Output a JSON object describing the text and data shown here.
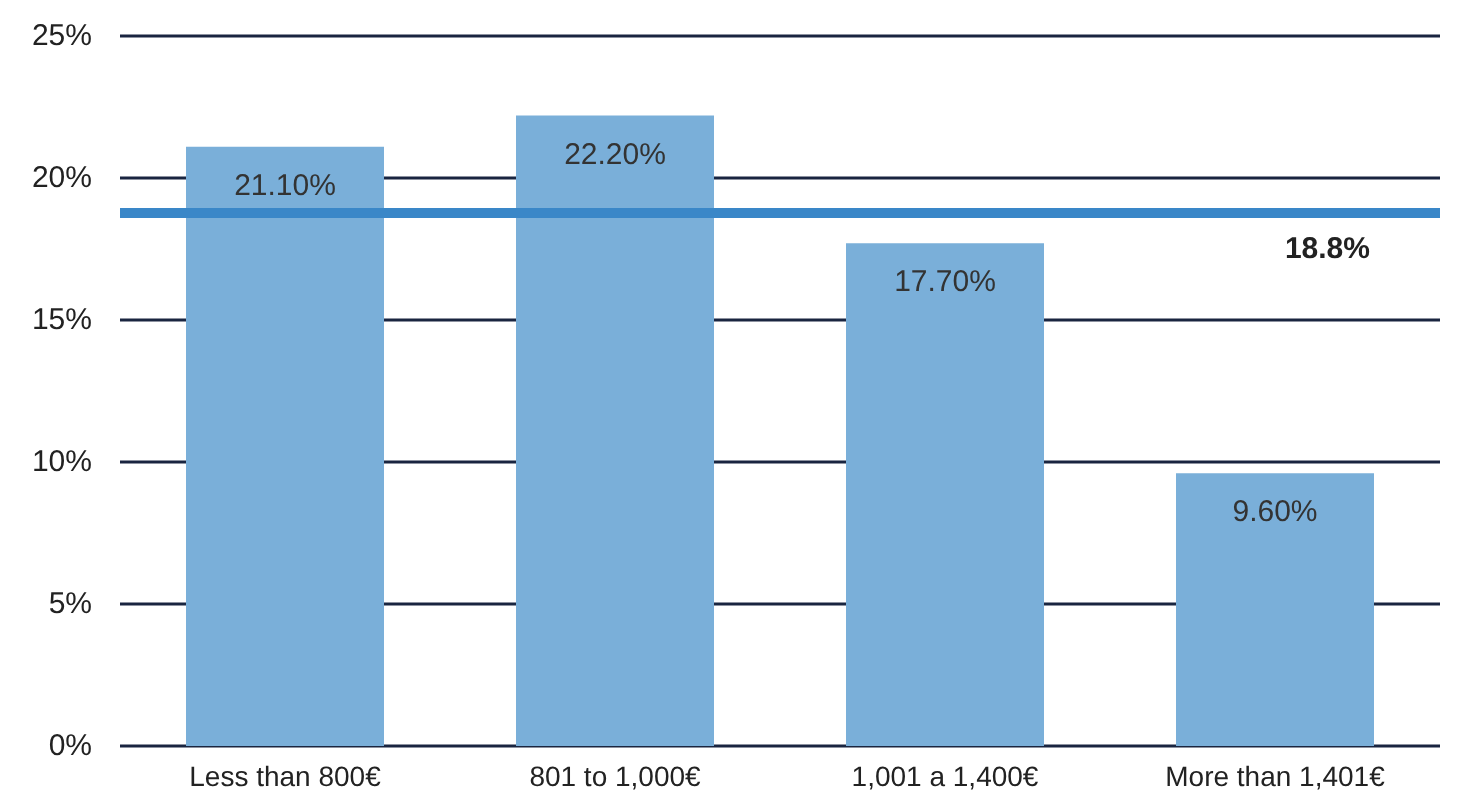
{
  "chart_data": {
    "type": "bar",
    "categories": [
      "Less than 800€",
      "801 to 1,000€",
      "1,001 a 1,400€",
      "More than 1,401€"
    ],
    "values": [
      21.1,
      22.2,
      17.7,
      9.6
    ],
    "value_labels": [
      "21.10%",
      "22.20%",
      "17.70%",
      "9.60%"
    ],
    "color": "#7aafd9",
    "ylim": [
      0,
      25
    ],
    "yticks": [
      {
        "value": 0,
        "label": "0%"
      },
      {
        "value": 5,
        "label": "5%"
      },
      {
        "value": 10,
        "label": "10%"
      },
      {
        "value": 15,
        "label": "15%"
      },
      {
        "value": 20,
        "label": "20%"
      },
      {
        "value": 25,
        "label": "25%"
      }
    ],
    "grid": "y",
    "ref_lines": [
      {
        "axis": "y",
        "value": 18.8,
        "label": "18.8%",
        "color": "#3a87c8"
      }
    ]
  }
}
